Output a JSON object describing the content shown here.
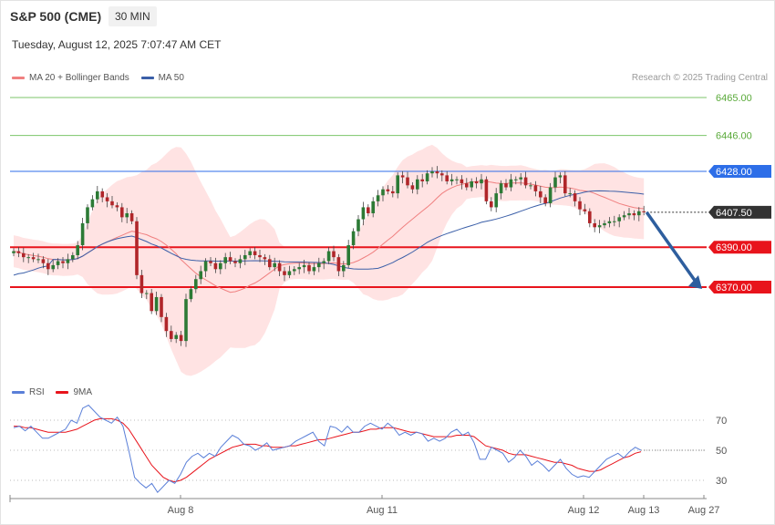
{
  "header": {
    "title": "S&P 500 (CME)",
    "timeframe": "30 MIN",
    "datetime": "Tuesday, August 12, 2025 7:07:47 AM CET",
    "copyright": "Research © 2025 Trading Central"
  },
  "colors": {
    "ma20": "#f08080",
    "bollinger_fill": "#ffdede",
    "ma50": "#3b5fa8",
    "resistance_green": "#7cc46a",
    "resistance_blue": "#2d6ee8",
    "support_red": "#e8141c",
    "current_price": "#333333",
    "arrow": "#2e5e9e",
    "candle_up": "#2c7a35",
    "candle_down": "#b0262a",
    "rsi": "#5a7fd8",
    "rsi_ma": "#e8141c"
  },
  "chart_data": [
    {
      "type": "candlestick",
      "title": "S&P 500 (CME) 30 MIN",
      "legend": [
        "MA 20 + Bollinger Bands",
        "MA 50"
      ],
      "legend_placement": "top-left",
      "ylim": [
        6340,
        6475
      ],
      "x_ticks": [
        "Aug 8",
        "Aug 11",
        "Aug 12",
        "Aug 13",
        "Aug 27"
      ],
      "levels": [
        {
          "value": 6465.0,
          "label": "6465.00",
          "kind": "resistance",
          "color": "#7cc46a"
        },
        {
          "value": 6446.0,
          "label": "6446.00",
          "kind": "resistance",
          "color": "#7cc46a"
        },
        {
          "value": 6428.0,
          "label": "6428.00",
          "kind": "resistance",
          "color": "#2d6ee8"
        },
        {
          "value": 6407.5,
          "label": "6407.50",
          "kind": "current",
          "color": "#333333"
        },
        {
          "value": 6390.0,
          "label": "6390.00",
          "kind": "support",
          "color": "#e8141c"
        },
        {
          "value": 6370.0,
          "label": "6370.00",
          "kind": "support",
          "color": "#e8141c"
        }
      ],
      "close": [
        6388,
        6387,
        6385,
        6385,
        6384,
        6384,
        6382,
        6379,
        6381,
        6383,
        6382,
        6384,
        6386,
        6391,
        6402,
        6410,
        6414,
        6418,
        6415,
        6413,
        6411,
        6410,
        6405,
        6407,
        6403,
        6376,
        6367,
        6367,
        6358,
        6365,
        6355,
        6348,
        6344,
        6346,
        6343,
        6364,
        6369,
        6374,
        6378,
        6383,
        6382,
        6379,
        6382,
        6385,
        6383,
        6382,
        6384,
        6386,
        6388,
        6386,
        6385,
        6384,
        6380,
        6382,
        6378,
        6376,
        6378,
        6379,
        6380,
        6381,
        6378,
        6380,
        6382,
        6383,
        6388,
        6385,
        6378,
        6381,
        6391,
        6398,
        6404,
        6410,
        6407,
        6413,
        6416,
        6419,
        6418,
        6417,
        6426,
        6425,
        6421,
        6419,
        6424,
        6423,
        6427,
        6428,
        6427,
        6426,
        6423,
        6424,
        6424,
        6422,
        6420,
        6423,
        6422,
        6424,
        6413,
        6410,
        6417,
        6422,
        6420,
        6424,
        6424,
        6425,
        6421,
        6421,
        6418,
        6415,
        6412,
        6420,
        6425,
        6426,
        6417,
        6417,
        6413,
        6409,
        6408,
        6402,
        6400,
        6401,
        6402,
        6403,
        6403,
        6405,
        6406,
        6407,
        6406,
        6408,
        6407.5
      ],
      "series": [
        {
          "name": "MA 20 + Bollinger Bands",
          "note": "upper/lower bands drawn around MA 20"
        },
        {
          "name": "MA 50"
        }
      ],
      "projection": {
        "from": 6407.5,
        "to": 6370.0
      }
    },
    {
      "type": "line",
      "legend": [
        "RSI",
        "9MA"
      ],
      "legend_placement": "top-left",
      "ylim": [
        20,
        85
      ],
      "y_ticks": [
        70,
        50,
        30
      ],
      "series": [
        {
          "name": "RSI",
          "values": [
            65,
            66,
            63,
            66,
            62,
            58,
            58,
            60,
            62,
            64,
            70,
            68,
            78,
            80,
            76,
            72,
            70,
            68,
            72,
            66,
            50,
            32,
            28,
            25,
            28,
            22,
            26,
            30,
            28,
            34,
            42,
            46,
            48,
            45,
            48,
            46,
            52,
            56,
            60,
            58,
            54,
            53,
            50,
            52,
            55,
            50,
            51,
            52,
            53,
            56,
            58,
            60,
            62,
            56,
            53,
            66,
            65,
            62,
            66,
            62,
            62,
            66,
            68,
            66,
            64,
            68,
            65,
            60,
            62,
            60,
            62,
            61,
            56,
            58,
            56,
            58,
            62,
            64,
            60,
            62,
            55,
            44,
            44,
            52,
            50,
            48,
            42,
            45,
            50,
            46,
            40,
            43,
            40,
            36,
            40,
            44,
            38,
            34,
            32,
            33,
            32,
            36,
            40,
            44,
            46,
            48,
            45,
            49,
            52,
            50
          ]
        },
        {
          "name": "9MA",
          "values": [
            66,
            66,
            65,
            65,
            64,
            63,
            62,
            62,
            62,
            62,
            63,
            64,
            66,
            68,
            70,
            71,
            71,
            71,
            70,
            68,
            64,
            58,
            52,
            46,
            40,
            36,
            32,
            30,
            29,
            30,
            32,
            35,
            38,
            41,
            44,
            46,
            48,
            50,
            52,
            53,
            54,
            54,
            54,
            53,
            53,
            52,
            52,
            52,
            53,
            53,
            54,
            55,
            56,
            57,
            57,
            58,
            59,
            60,
            61,
            62,
            62,
            63,
            64,
            64,
            65,
            65,
            65,
            64,
            63,
            62,
            62,
            61,
            60,
            59,
            59,
            59,
            59,
            60,
            60,
            60,
            59,
            56,
            53,
            52,
            51,
            50,
            48,
            47,
            47,
            47,
            46,
            45,
            44,
            43,
            42,
            42,
            41,
            40,
            38,
            37,
            36,
            36,
            37,
            39,
            41,
            43,
            45,
            46,
            48,
            49
          ]
        }
      ]
    }
  ]
}
